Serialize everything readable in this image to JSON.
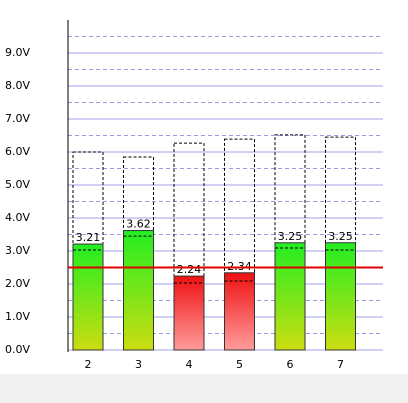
{
  "chart_data": {
    "type": "bar",
    "categories": [
      "2",
      "3",
      "4",
      "5",
      "6",
      "7"
    ],
    "values": [
      3.21,
      3.62,
      2.24,
      2.34,
      3.25,
      3.25
    ],
    "max_values": [
      6.0,
      5.85,
      6.27,
      6.39,
      6.52,
      6.45
    ],
    "min_values": [
      3.03,
      3.45,
      2.03,
      2.09,
      3.09,
      3.03
    ],
    "threshold": 2.5,
    "threshold_color": "#dd0000",
    "colors": {
      "above": [
        "#22ee22",
        "#ccdd11"
      ],
      "below": [
        "#ee1111",
        "#ff9c9c"
      ]
    },
    "ylim": [
      0,
      10
    ],
    "yticks": [
      {
        "value": 0,
        "label": "0.0V"
      },
      {
        "value": 1,
        "label": "1.0V"
      },
      {
        "value": 2,
        "label": "2.0V"
      },
      {
        "value": 3,
        "label": "3.0V"
      },
      {
        "value": 4,
        "label": "4.0V"
      },
      {
        "value": 5,
        "label": "5.0V"
      },
      {
        "value": 6,
        "label": "6.0V"
      },
      {
        "value": 7,
        "label": "7.0V"
      },
      {
        "value": 8,
        "label": "8.0V"
      },
      {
        "value": 9,
        "label": "9.0V"
      }
    ],
    "minor_yticks": [
      0.5,
      1.5,
      2.5,
      3.5,
      4.5,
      5.5,
      6.5,
      7.5,
      8.5,
      9.5
    ],
    "grid": true
  }
}
